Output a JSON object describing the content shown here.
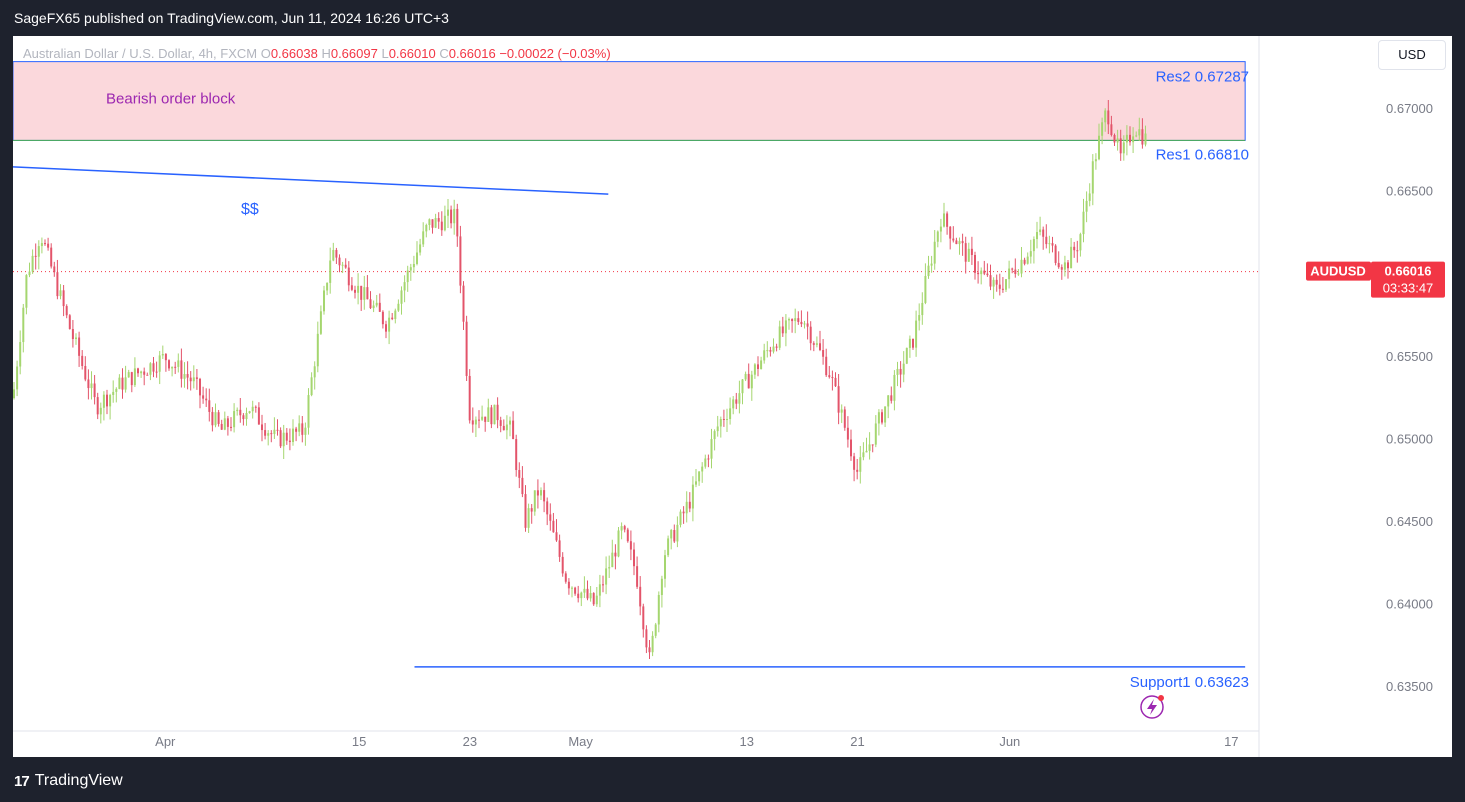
{
  "header": {
    "published": "SageFX65 published on TradingView.com, Jun 11, 2024 16:26 UTC+3"
  },
  "legend": {
    "symbol": "Australian Dollar / U.S. Dollar, 4h, FXCM",
    "o_label": "O",
    "o_value": "0.66038",
    "h_label": "H",
    "h_value": "0.66097",
    "l_label": "L",
    "l_value": "0.66010",
    "c_label": "C",
    "c_value": "0.66016",
    "change": "−0.00022 (−0.03%)"
  },
  "currency_button": "USD",
  "footer": {
    "brand": "TradingView"
  },
  "colors": {
    "up": "#a5d66f",
    "down": "#e3546a",
    "drawing": "#2962ff",
    "zone_fill": "#fbd8dc",
    "zone_text": "#9c27b0",
    "last_price_bg": "#f23645"
  },
  "chart_data": {
    "type": "candlestick",
    "title": "Australian Dollar / U.S. Dollar, 4h, FXCM",
    "ylim": [
      0.6335,
      0.672
    ],
    "y_ticks": [
      "0.67000",
      "0.66500",
      "0.66000",
      "0.65500",
      "0.65000",
      "0.64500",
      "0.64000",
      "0.63500"
    ],
    "y_tick_values": [
      0.67,
      0.665,
      0.66,
      0.655,
      0.65,
      0.645,
      0.64,
      0.635
    ],
    "x_ticks": [
      "Apr",
      "15",
      "23",
      "May",
      "13",
      "21",
      "Jun",
      "17"
    ],
    "x_tick_dates": [
      "2024-04-01",
      "2024-04-15",
      "2024-04-23",
      "2024-05-01",
      "2024-05-13",
      "2024-05-21",
      "2024-06-01",
      "2024-06-17"
    ],
    "x_range": [
      "2024-03-21",
      "2024-06-19"
    ],
    "last_price": {
      "symbol": "AUDUSD",
      "price": "0.66016",
      "countdown": "03:33:47",
      "value": 0.66016
    },
    "zones": [
      {
        "label": "Bearish order block",
        "top": 0.67287,
        "bottom": 0.6681,
        "start": "2024-03-21",
        "end": "2024-06-18"
      }
    ],
    "levels": [
      {
        "label": "Res2 0.67287",
        "value": 0.67287
      },
      {
        "label": "Res1 0.66810",
        "value": 0.6681
      },
      {
        "label": "Support1  0.63623",
        "value": 0.63623,
        "start": "2024-04-19",
        "end": "2024-06-18"
      }
    ],
    "trendline": {
      "label": "$$",
      "start": [
        "2024-03-21",
        0.6665
      ],
      "end": [
        "2024-05-03",
        0.66485
      ]
    },
    "path": [
      [
        "2024-03-21",
        0.6525
      ],
      [
        "2024-03-22",
        0.66
      ],
      [
        "2024-03-23",
        0.6625
      ],
      [
        "2024-03-25",
        0.657
      ],
      [
        "2024-03-27",
        0.652
      ],
      [
        "2024-03-29",
        0.6535
      ],
      [
        "2024-04-01",
        0.655
      ],
      [
        "2024-04-03",
        0.6535
      ],
      [
        "2024-04-05",
        0.6505
      ],
      [
        "2024-04-07",
        0.652
      ],
      [
        "2024-04-09",
        0.65
      ],
      [
        "2024-04-11",
        0.6505
      ],
      [
        "2024-04-13",
        0.6615
      ],
      [
        "2024-04-15",
        0.659
      ],
      [
        "2024-04-17",
        0.657
      ],
      [
        "2024-04-19",
        0.661
      ],
      [
        "2024-04-20",
        0.663
      ],
      [
        "2024-04-22",
        0.6635
      ],
      [
        "2024-04-23",
        0.6515
      ],
      [
        "2024-04-25",
        0.6515
      ],
      [
        "2024-04-26",
        0.6505
      ],
      [
        "2024-04-27",
        0.645
      ],
      [
        "2024-04-28",
        0.647
      ],
      [
        "2024-04-30",
        0.6415
      ],
      [
        "2024-05-02",
        0.64
      ],
      [
        "2024-05-04",
        0.6445
      ],
      [
        "2024-05-05",
        0.642
      ],
      [
        "2024-05-06",
        0.6365
      ],
      [
        "2024-05-07",
        0.643
      ],
      [
        "2024-05-09",
        0.6465
      ],
      [
        "2024-05-11",
        0.651
      ],
      [
        "2024-05-13",
        0.6535
      ],
      [
        "2024-05-15",
        0.656
      ],
      [
        "2024-05-17",
        0.6575
      ],
      [
        "2024-05-19",
        0.654
      ],
      [
        "2024-05-21",
        0.648
      ],
      [
        "2024-05-23",
        0.652
      ],
      [
        "2024-05-25",
        0.656
      ],
      [
        "2024-05-27",
        0.6635
      ],
      [
        "2024-05-29",
        0.661
      ],
      [
        "2024-05-31",
        0.659
      ],
      [
        "2024-06-02",
        0.661
      ],
      [
        "2024-06-03",
        0.6625
      ],
      [
        "2024-06-04",
        0.6615
      ],
      [
        "2024-06-05",
        0.6605
      ],
      [
        "2024-06-06",
        0.662
      ],
      [
        "2024-06-07",
        0.6665
      ],
      [
        "2024-06-08",
        0.67
      ],
      [
        "2024-06-09",
        0.667
      ],
      [
        "2024-06-10",
        0.669
      ],
      [
        "2024-06-11",
        0.668
      ]
    ]
  }
}
